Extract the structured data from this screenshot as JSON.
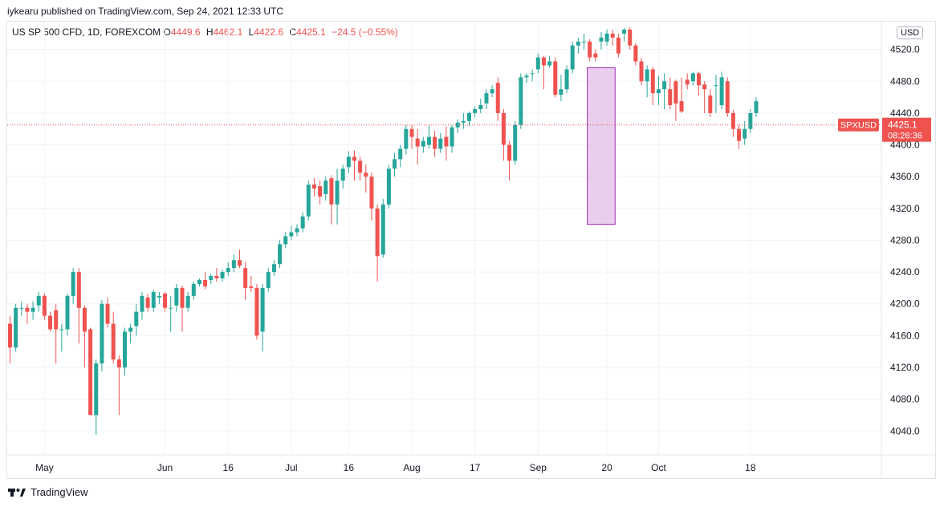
{
  "header": {
    "published": "iykearu published on TradingView.com, Sep 24, 2021 12:33 UTC"
  },
  "legend": {
    "title": "US SP 500 CFD, 1D, FOREXCOM",
    "o_label": "O",
    "o_value": "4449.6",
    "h_label": "H",
    "h_value": "4462.1",
    "l_label": "L",
    "l_value": "4422.6",
    "c_label": "C",
    "c_value": "4425.1",
    "change": "−24.5 (−0.55%)"
  },
  "currency_button": "USD",
  "price_tag": {
    "symbol": "SPXUSD",
    "price": "4425.1",
    "countdown": "08:26:36"
  },
  "footer": {
    "brand": "TradingView"
  },
  "colors": {
    "up": "#26a69a",
    "down": "#ef5350",
    "highlight_fill": "#e1bee7",
    "highlight_stroke": "#9c27b0"
  },
  "chart_data": {
    "type": "candlestick",
    "symbol": "SPXUSD",
    "ylim": [
      4010,
      4555
    ],
    "y_ticks": [
      4040,
      4080,
      4120,
      4160,
      4200,
      4240,
      4280,
      4320,
      4360,
      4400,
      4440,
      4480,
      4520
    ],
    "x_tick_labels": [
      {
        "label": "May",
        "index": 6
      },
      {
        "label": "Jun",
        "index": 27
      },
      {
        "label": "16",
        "index": 38
      },
      {
        "label": "Jul",
        "index": 49
      },
      {
        "label": "16",
        "index": 59
      },
      {
        "label": "Aug",
        "index": 70
      },
      {
        "label": "17",
        "index": 81
      },
      {
        "label": "Sep",
        "index": 92
      },
      {
        "label": "20",
        "index": 104
      },
      {
        "label": "Oct",
        "index": 113
      },
      {
        "label": "18",
        "index": 129
      }
    ],
    "last_price": 4425.1,
    "highlight": {
      "from_index": 101,
      "to_index": 105,
      "top": 4497,
      "bottom": 4300
    },
    "candles": [
      [
        4175,
        4145,
        4185,
        4125
      ],
      [
        4145,
        4195,
        4200,
        4140
      ],
      [
        4195,
        4195,
        4203,
        4185
      ],
      [
        4195,
        4190,
        4200,
        4175
      ],
      [
        4190,
        4195,
        4203,
        4180
      ],
      [
        4198,
        4210,
        4215,
        4190
      ],
      [
        4210,
        4185,
        4213,
        4180
      ],
      [
        4185,
        4168,
        4190,
        4165
      ],
      [
        4192,
        4168,
        4200,
        4125
      ],
      [
        4168,
        4168,
        4175,
        4140
      ],
      [
        4168,
        4210,
        4213,
        4160
      ],
      [
        4210,
        4240,
        4245,
        4200
      ],
      [
        4240,
        4195,
        4245,
        4150
      ],
      [
        4195,
        4165,
        4198,
        4120
      ],
      [
        4168,
        4060,
        4170,
        4060
      ],
      [
        4060,
        4125,
        4130,
        4035
      ],
      [
        4125,
        4200,
        4205,
        4115
      ],
      [
        4200,
        4175,
        4208,
        4170
      ],
      [
        4175,
        4130,
        4190,
        4125
      ],
      [
        4130,
        4120,
        4135,
        4060
      ],
      [
        4120,
        4165,
        4170,
        4110
      ],
      [
        4165,
        4170,
        4175,
        4150
      ],
      [
        4172,
        4190,
        4200,
        4160
      ],
      [
        4190,
        4210,
        4215,
        4180
      ],
      [
        4208,
        4195,
        4213,
        4190
      ],
      [
        4195,
        4215,
        4218,
        4190
      ],
      [
        4208,
        4210,
        4215,
        4200
      ],
      [
        4213,
        4195,
        4215,
        4190
      ],
      [
        4195,
        4195,
        4210,
        4165
      ],
      [
        4198,
        4220,
        4225,
        4190
      ],
      [
        4220,
        4195,
        4223,
        4165
      ],
      [
        4195,
        4210,
        4215,
        4190
      ],
      [
        4210,
        4225,
        4228,
        4205
      ],
      [
        4225,
        4230,
        4232,
        4222
      ],
      [
        4230,
        4222,
        4240,
        4218
      ],
      [
        4230,
        4235,
        4238,
        4225
      ],
      [
        4235,
        4232,
        4245,
        4228
      ],
      [
        4232,
        4240,
        4243,
        4228
      ],
      [
        4240,
        4245,
        4252,
        4235
      ],
      [
        4245,
        4255,
        4262,
        4240
      ],
      [
        4255,
        4248,
        4268,
        4245
      ],
      [
        4245,
        4220,
        4253,
        4205
      ],
      [
        4222,
        4220,
        4235,
        4215
      ],
      [
        4220,
        4160,
        4225,
        4155
      ],
      [
        4165,
        4220,
        4225,
        4140
      ],
      [
        4220,
        4240,
        4245,
        4215
      ],
      [
        4240,
        4250,
        4255,
        4235
      ],
      [
        4250,
        4275,
        4280,
        4245
      ],
      [
        4275,
        4285,
        4290,
        4270
      ],
      [
        4285,
        4290,
        4298,
        4280
      ],
      [
        4290,
        4295,
        4300,
        4285
      ],
      [
        4295,
        4310,
        4315,
        4290
      ],
      [
        4310,
        4350,
        4355,
        4305
      ],
      [
        4350,
        4345,
        4358,
        4335
      ],
      [
        4348,
        4335,
        4355,
        4325
      ],
      [
        4338,
        4355,
        4360,
        4330
      ],
      [
        4358,
        4325,
        4362,
        4300
      ],
      [
        4325,
        4355,
        4370,
        4300
      ],
      [
        4355,
        4370,
        4375,
        4345
      ],
      [
        4372,
        4385,
        4392,
        4365
      ],
      [
        4385,
        4380,
        4393,
        4355
      ],
      [
        4380,
        4365,
        4385,
        4355
      ],
      [
        4365,
        4360,
        4375,
        4340
      ],
      [
        4360,
        4320,
        4365,
        4305
      ],
      [
        4320,
        4260,
        4325,
        4228
      ],
      [
        4262,
        4325,
        4332,
        4258
      ],
      [
        4325,
        4370,
        4375,
        4320
      ],
      [
        4370,
        4382,
        4390,
        4360
      ],
      [
        4382,
        4395,
        4400,
        4372
      ],
      [
        4395,
        4420,
        4425,
        4388
      ],
      [
        4420,
        4410,
        4425,
        4395
      ],
      [
        4408,
        4398,
        4420,
        4375
      ],
      [
        4398,
        4405,
        4410,
        4390
      ],
      [
        4400,
        4410,
        4425,
        4395
      ],
      [
        4410,
        4395,
        4418,
        4385
      ],
      [
        4395,
        4408,
        4415,
        4390
      ],
      [
        4410,
        4398,
        4423,
        4380
      ],
      [
        4398,
        4422,
        4425,
        4390
      ],
      [
        4422,
        4428,
        4432,
        4415
      ],
      [
        4428,
        4430,
        4440,
        4420
      ],
      [
        4430,
        4440,
        4442,
        4424
      ],
      [
        4440,
        4445,
        4448,
        4435
      ],
      [
        4445,
        4450,
        4458,
        4440
      ],
      [
        4452,
        4465,
        4470,
        4445
      ],
      [
        4465,
        4470,
        4475,
        4460
      ],
      [
        4478,
        4440,
        4485,
        4430
      ],
      [
        4440,
        4400,
        4445,
        4380
      ],
      [
        4400,
        4380,
        4405,
        4355
      ],
      [
        4380,
        4425,
        4430,
        4375
      ],
      [
        4425,
        4485,
        4490,
        4420
      ],
      [
        4485,
        4487,
        4490,
        4478
      ],
      [
        4490,
        4490,
        4495,
        4480
      ],
      [
        4495,
        4510,
        4515,
        4490
      ],
      [
        4510,
        4500,
        4512,
        4470
      ],
      [
        4500,
        4505,
        4512,
        4497
      ],
      [
        4505,
        4463,
        4510,
        4460
      ],
      [
        4463,
        4470,
        4488,
        4455
      ],
      [
        4470,
        4495,
        4500,
        4465
      ],
      [
        4495,
        4525,
        4530,
        4490
      ],
      [
        4525,
        4530,
        4535,
        4515
      ],
      [
        4530,
        4530,
        4540,
        4520
      ],
      [
        4530,
        4510,
        4533,
        4505
      ],
      [
        4515,
        4510,
        4520,
        4505
      ],
      [
        4530,
        4535,
        4542,
        4520
      ],
      [
        4530,
        4540,
        4545,
        4525
      ],
      [
        4540,
        4535,
        4545,
        4525
      ],
      [
        4535,
        4515,
        4540,
        4510
      ],
      [
        4540,
        4545,
        4547,
        4530
      ],
      [
        4545,
        4525,
        4548,
        4520
      ],
      [
        4525,
        4505,
        4528,
        4500
      ],
      [
        4505,
        4480,
        4510,
        4475
      ],
      [
        4480,
        4495,
        4500,
        4460
      ],
      [
        4495,
        4465,
        4498,
        4450
      ],
      [
        4465,
        4470,
        4487,
        4450
      ],
      [
        4470,
        4480,
        4490,
        4445
      ],
      [
        4470,
        4450,
        4485,
        4445
      ],
      [
        4480,
        4452,
        4482,
        4430
      ],
      [
        4455,
        4442,
        4485,
        4440
      ],
      [
        4482,
        4476,
        4490,
        4470
      ],
      [
        4480,
        4490,
        4492,
        4475
      ],
      [
        4490,
        4475,
        4492,
        4462
      ],
      [
        4476,
        4470,
        4480,
        4440
      ],
      [
        4462,
        4440,
        4470,
        4435
      ],
      [
        4475,
        4475,
        4488,
        4440
      ],
      [
        4450,
        4485,
        4492,
        4445
      ],
      [
        4480,
        4440,
        4485,
        4435
      ],
      [
        4440,
        4420,
        4444,
        4410
      ],
      [
        4420,
        4405,
        4425,
        4395
      ],
      [
        4408,
        4420,
        4430,
        4400
      ],
      [
        4420,
        4440,
        4445,
        4415
      ],
      [
        4440,
        4455,
        4460,
        4435
      ]
    ]
  }
}
